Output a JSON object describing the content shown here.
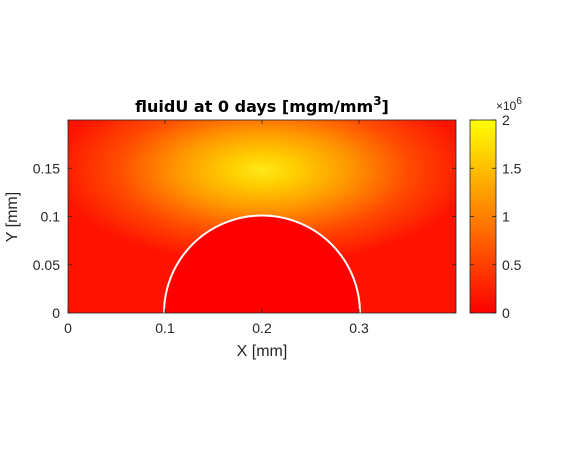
{
  "chart_data": {
    "type": "heatmap",
    "title": {
      "prefix": "fluidU at 0 days [mgm/mm",
      "superscript": "3",
      "suffix": "]"
    },
    "xlabel": "X [mm]",
    "ylabel": "Y [mm]",
    "xlim": [
      0,
      0.4
    ],
    "ylim": [
      0,
      0.2
    ],
    "xticks": [
      0,
      0.1,
      0.2,
      0.3
    ],
    "xtick_labels": [
      "0",
      "0.1",
      "0.2",
      "0.3"
    ],
    "yticks": [
      0,
      0.05,
      0.1,
      0.15
    ],
    "ytick_labels": [
      "0",
      "0.05",
      "0.1",
      "0.15"
    ],
    "colorbar": {
      "ticks": [
        0,
        0.5,
        1,
        1.5,
        2
      ],
      "tick_labels": [
        "0",
        "0.5",
        "1",
        "1.5",
        "2"
      ],
      "exponent_base": "×10",
      "exponent": "6",
      "colormap": "autumn",
      "color_low": "#ff0000",
      "color_high": "#ffff00",
      "clim": [
        0,
        2000000
      ]
    },
    "field": {
      "peak_value": 2000000,
      "peak_x": 0.2,
      "peak_y": 0.15,
      "inclusion": {
        "shape": "semicircle",
        "center_x": 0.2,
        "center_y": 0,
        "radius": 0.1,
        "interior_value": 0,
        "boundary_color": "#ffffff"
      }
    }
  }
}
